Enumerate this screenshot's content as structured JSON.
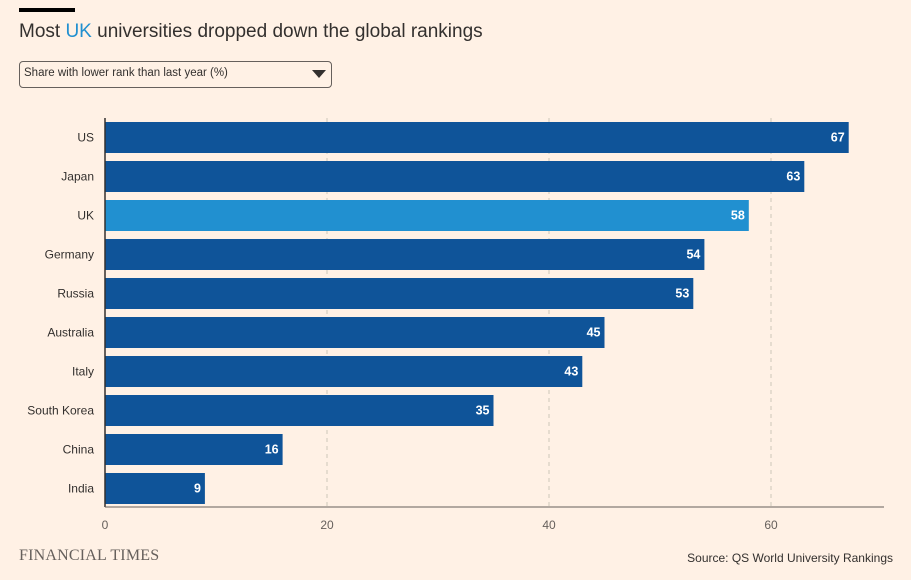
{
  "header": {
    "title_before": "Most ",
    "title_highlight": "UK",
    "title_after": " universities dropped down the global rankings"
  },
  "dropdown": {
    "selected": "Share with lower rank than last year (%)"
  },
  "footer": {
    "logo": "FINANCIAL TIMES",
    "source": "Source: QS World University Rankings"
  },
  "colors": {
    "background": "#FFF1E5",
    "bar": "#0F5499",
    "highlight_bar": "#2190D0",
    "title_highlight": "#2190D0"
  },
  "chart_data": {
    "type": "bar",
    "orientation": "horizontal",
    "categories": [
      "US",
      "Japan",
      "UK",
      "Germany",
      "Russia",
      "Australia",
      "Italy",
      "South Korea",
      "China",
      "India"
    ],
    "values": [
      67,
      63,
      58,
      54,
      53,
      45,
      43,
      35,
      16,
      9
    ],
    "highlight": "UK",
    "xlim": [
      0,
      70
    ],
    "xticks": [
      0,
      20,
      40,
      60
    ],
    "grid": true,
    "data_labels": true
  }
}
